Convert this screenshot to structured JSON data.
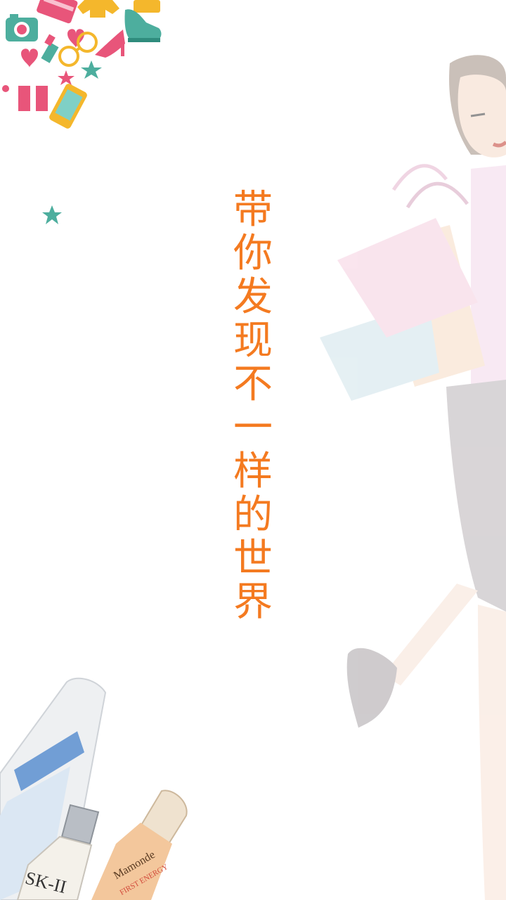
{
  "splash": {
    "slogan_chars": [
      "带",
      "你",
      "发",
      "现",
      "不",
      "一",
      "样",
      "的",
      "世",
      "界"
    ],
    "slogan_color": "#f47a20"
  },
  "products": {
    "brand_1": "SK-II",
    "brand_2": "Mamonde",
    "brand_2_line": "FIRST ENERGY"
  },
  "colors": {
    "pink": "#e8557a",
    "teal": "#4dae9e",
    "yellow": "#f4b72c",
    "bag_pink": "#f5cfe0",
    "bag_blue": "#cfe3ea",
    "bag_peach": "#f6dcc4",
    "skin": "#f7e2d6",
    "hair": "#a08e80",
    "skirt": "#b9b3b7"
  },
  "icons": [
    "camera-icon",
    "heart-icon",
    "lipstick-icon",
    "glasses-icon",
    "high-heel-icon",
    "sneaker-icon",
    "star-icon",
    "gift-icon",
    "phone-icon",
    "credit-card-icon",
    "shirt-icon"
  ]
}
